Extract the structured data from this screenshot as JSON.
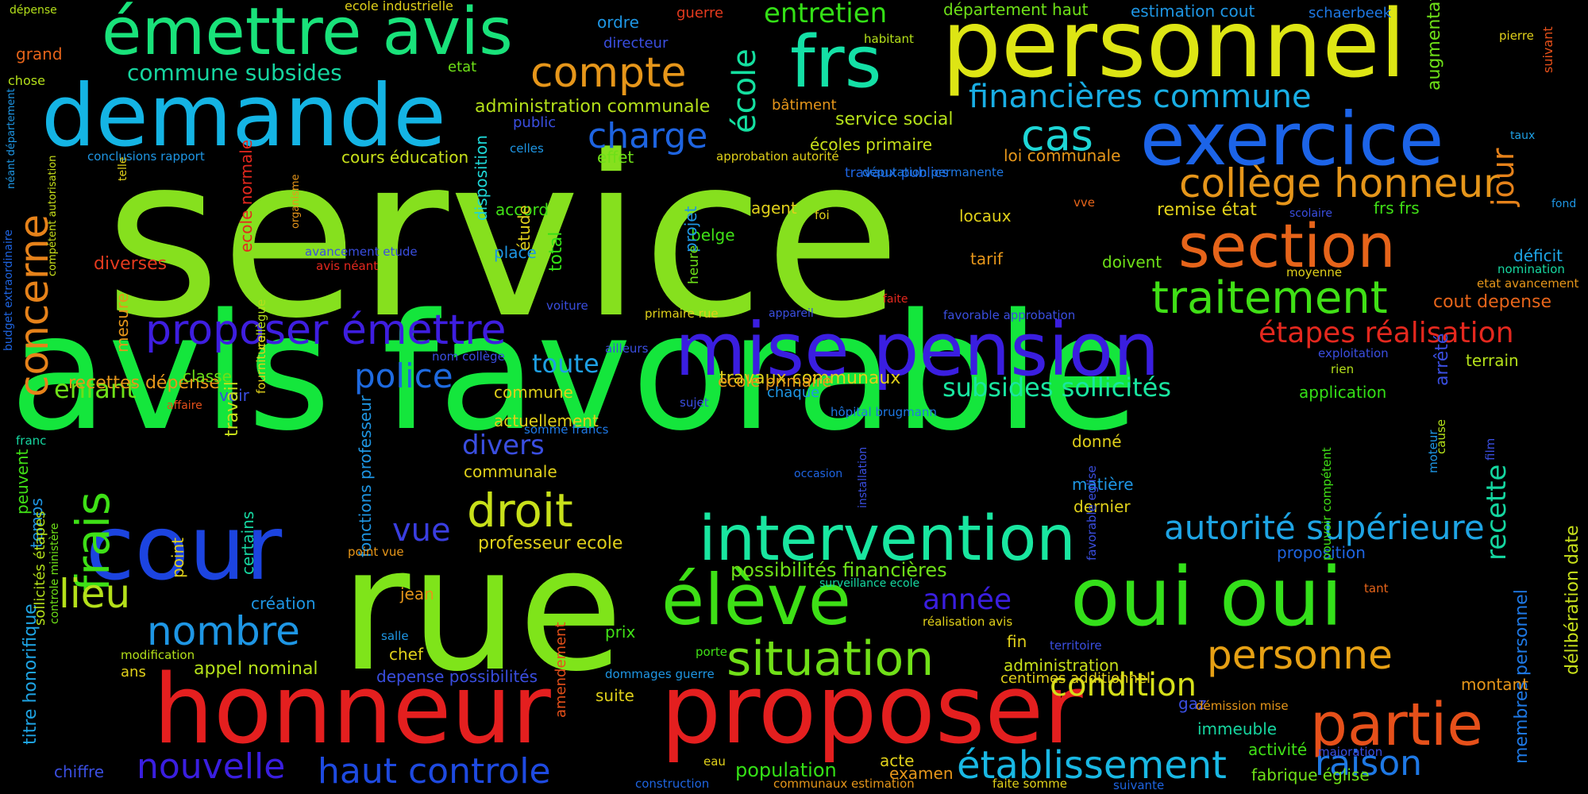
{
  "words": [
    {
      "text": "service",
      "color": "#86e01e"
    },
    {
      "text": "avis favorable",
      "color": "#14e63c"
    },
    {
      "text": "rue",
      "color": "#7fe41a"
    },
    {
      "text": "personnel",
      "color": "#dde514"
    },
    {
      "text": "honneur",
      "color": "#e41f1f"
    },
    {
      "text": "proposer",
      "color": "#e41f1f"
    },
    {
      "text": "demande",
      "color": "#14b4e4"
    },
    {
      "text": "émettre avis",
      "color": "#19e27a"
    },
    {
      "text": "mise pension",
      "color": "#3a1ee0"
    },
    {
      "text": "oui oui",
      "color": "#34e01a"
    },
    {
      "text": "exercice",
      "color": "#1c64e8"
    },
    {
      "text": "cour",
      "color": "#1c44e0"
    },
    {
      "text": "frs",
      "color": "#14e0a6"
    },
    {
      "text": "intervention",
      "color": "#19e6a0"
    },
    {
      "text": "élève",
      "color": "#3ee016"
    },
    {
      "text": "section",
      "color": "#e6641a"
    },
    {
      "text": "partie",
      "color": "#e6501a"
    },
    {
      "text": "collège honneur",
      "color": "#e6961a"
    },
    {
      "text": "traitement",
      "color": "#40e016"
    },
    {
      "text": "proposer émettre",
      "color": "#3e1ee0"
    },
    {
      "text": "situation",
      "color": "#70e018"
    },
    {
      "text": "droit",
      "color": "#c8e01a"
    },
    {
      "text": "cas",
      "color": "#1ed6d6"
    },
    {
      "text": "compte",
      "color": "#e6961a"
    },
    {
      "text": "personne",
      "color": "#e6a014"
    },
    {
      "text": "établissement",
      "color": "#19b8e4"
    },
    {
      "text": "autorité supérieure",
      "color": "#1ea4e4"
    },
    {
      "text": "financières commune",
      "color": "#19aee4"
    },
    {
      "text": "frais",
      "color": "#3ee016"
    },
    {
      "text": "nombre",
      "color": "#1e96e4"
    },
    {
      "text": "lieu",
      "color": "#b4e01a"
    },
    {
      "text": "concerne",
      "color": "#e6821a"
    },
    {
      "text": "école",
      "color": "#14e0a0"
    },
    {
      "text": "charge",
      "color": "#1e64e0"
    },
    {
      "text": "raison",
      "color": "#1e78e4"
    },
    {
      "text": "nouvelle",
      "color": "#3a1ee0"
    },
    {
      "text": "haut controle",
      "color": "#1e4ae0"
    },
    {
      "text": "condition",
      "color": "#d6e01a"
    },
    {
      "text": "police",
      "color": "#1e6ae0"
    },
    {
      "text": "étapes réalisation",
      "color": "#e4281e"
    },
    {
      "text": "jour",
      "color": "#e6821a"
    },
    {
      "text": "recette",
      "color": "#14d6a0"
    },
    {
      "text": "entretien",
      "color": "#34e016"
    },
    {
      "text": "divers",
      "color": "#3a4ee0"
    },
    {
      "text": "vue",
      "color": "#3a3ee0"
    },
    {
      "text": "année",
      "color": "#3a1ee0"
    },
    {
      "text": "subsides sollicités",
      "color": "#19e6a0"
    },
    {
      "text": "commune subsides",
      "color": "#16d6a0"
    },
    {
      "text": "toute",
      "color": "#1ea0e4"
    },
    {
      "text": "enfant",
      "color": "#6ee018"
    },
    {
      "text": "possibilités financières",
      "color": "#6ee018"
    },
    {
      "text": "appel nominal",
      "color": "#b4e01a"
    },
    {
      "text": "professeur ecole",
      "color": "#e0d01a"
    },
    {
      "text": "remise état",
      "color": "#e0d01a"
    },
    {
      "text": "cout depense",
      "color": "#e6641a"
    },
    {
      "text": "population",
      "color": "#34e016"
    },
    {
      "text": "administration communale",
      "color": "#b4e01a"
    },
    {
      "text": "travaux communaux",
      "color": "#e0d01a"
    },
    {
      "text": "recettes dépense",
      "color": "#e6961a"
    },
    {
      "text": "diverses",
      "color": "#e43a1e"
    },
    {
      "text": "service social",
      "color": "#b4e01a"
    },
    {
      "text": "cours éducation",
      "color": "#c8e01a"
    },
    {
      "text": "écoles primaire",
      "color": "#c8e01a"
    },
    {
      "text": "loi communale",
      "color": "#e6961a"
    },
    {
      "text": "augmentation",
      "color": "#6ee018"
    },
    {
      "text": "fonctions professeur",
      "color": "#1e96e4"
    },
    {
      "text": "titre honorifique",
      "color": "#1ea4e4"
    },
    {
      "text": "membres personnel",
      "color": "#1e78e4"
    },
    {
      "text": "délibération date",
      "color": "#c8e01a"
    },
    {
      "text": "département haut",
      "color": "#6ee018"
    },
    {
      "text": "estimation cout",
      "color": "#1e96e4"
    },
    {
      "text": "schaerbeek",
      "color": "#1e78e4"
    },
    {
      "text": "ecole industrielle",
      "color": "#e0d01a"
    },
    {
      "text": "guerre",
      "color": "#e43a1e"
    },
    {
      "text": "dépense",
      "color": "#b4e01a"
    },
    {
      "text": "suivant",
      "color": "#e6501a"
    },
    {
      "text": "pierre",
      "color": "#e0d01a"
    },
    {
      "text": "grand",
      "color": "#e6641a"
    },
    {
      "text": "chose",
      "color": "#b4e01a"
    },
    {
      "text": "néant département",
      "color": "#1e96e4"
    },
    {
      "text": "budget extraordinaire",
      "color": "#1e64e0"
    },
    {
      "text": "compétent autorisation",
      "color": "#c8e01a"
    },
    {
      "text": "conclusions rapport",
      "color": "#1e96e4"
    },
    {
      "text": "telle",
      "color": "#e0d01a"
    },
    {
      "text": "ecole normale",
      "color": "#e4281e"
    },
    {
      "text": "avancement etude",
      "color": "#3a4ee0"
    },
    {
      "text": "avis néant",
      "color": "#e4281e"
    },
    {
      "text": "organisme",
      "color": "#e6961a"
    },
    {
      "text": "celles",
      "color": "#1e96e4"
    },
    {
      "text": "effet",
      "color": "#6ee018"
    },
    {
      "text": "approbation autorité",
      "color": "#e0d01a"
    },
    {
      "text": "ordre",
      "color": "#1e96e4"
    },
    {
      "text": "directeur",
      "color": "#3a4ee0"
    },
    {
      "text": "habitant",
      "color": "#b4e01a"
    },
    {
      "text": "etat",
      "color": "#6ee018"
    },
    {
      "text": "bâtiment",
      "color": "#e6961a"
    },
    {
      "text": "public",
      "color": "#3a4ee0"
    },
    {
      "text": "taux",
      "color": "#1ea0e4"
    },
    {
      "text": "fond",
      "color": "#1e96e4"
    },
    {
      "text": "scolaire",
      "color": "#3a4ee0"
    },
    {
      "text": "frs frs",
      "color": "#40e016"
    },
    {
      "text": "déficit",
      "color": "#1ea4e4"
    },
    {
      "text": "nomination",
      "color": "#16d6a0"
    },
    {
      "text": "etat avancement",
      "color": "#e6961a"
    },
    {
      "text": "moyenne",
      "color": "#e0d01a"
    },
    {
      "text": "locaux",
      "color": "#e0d01a"
    },
    {
      "text": "vve",
      "color": "#e6641a"
    },
    {
      "text": "agent",
      "color": "#e0d01a"
    },
    {
      "text": "foi",
      "color": "#e0d01a"
    },
    {
      "text": "accord",
      "color": "#40e016"
    },
    {
      "text": "disposition",
      "color": "#1ed6d6"
    },
    {
      "text": "belge",
      "color": "#40e016"
    },
    {
      "text": "étude",
      "color": "#e0d01a"
    },
    {
      "text": "projet",
      "color": "#1e96e4"
    },
    {
      "text": "total",
      "color": "#34e016"
    },
    {
      "text": "heure",
      "color": "#6ee018"
    },
    {
      "text": "tarif",
      "color": "#e6961a"
    },
    {
      "text": "doivent",
      "color": "#6ee018"
    },
    {
      "text": "travaux publics",
      "color": "#1e64e0"
    },
    {
      "text": "députation permanente",
      "color": "#1e78e4"
    },
    {
      "text": "faite",
      "color": "#e4281e"
    },
    {
      "text": "place",
      "color": "#1e96e4"
    },
    {
      "text": "voiture",
      "color": "#3a4ee0"
    },
    {
      "text": "primaire rue",
      "color": "#e0d01a"
    },
    {
      "text": "appareil",
      "color": "#3a4ee0"
    },
    {
      "text": "favorable approbation",
      "color": "#3a4ee0"
    },
    {
      "text": "exploitation",
      "color": "#3a4ee0"
    },
    {
      "text": "rien",
      "color": "#b4e01a"
    },
    {
      "text": "terrain",
      "color": "#b4e01a"
    },
    {
      "text": "mesure",
      "color": "#e6961a"
    },
    {
      "text": "collègue",
      "color": "#b4e01a"
    },
    {
      "text": "nom collège",
      "color": "#3a4ee0"
    },
    {
      "text": "ailleurs",
      "color": "#3a4ee0"
    },
    {
      "text": "classe",
      "color": "#6ee018"
    },
    {
      "text": "voir",
      "color": "#3a4ee0"
    },
    {
      "text": "fourniture",
      "color": "#e0d01a"
    },
    {
      "text": "commune",
      "color": "#e0d01a"
    },
    {
      "text": "ecole primaire",
      "color": "#e6961a"
    },
    {
      "text": "chaque",
      "color": "#1e96e4"
    },
    {
      "text": "application",
      "color": "#34e016"
    },
    {
      "text": "arrêté",
      "color": "#3a4ee0"
    },
    {
      "text": "hôpital brugmann",
      "color": "#1e78e4"
    },
    {
      "text": "sujet",
      "color": "#3a4ee0"
    },
    {
      "text": "affaire",
      "color": "#e6501a"
    },
    {
      "text": "franc",
      "color": "#16d6a0"
    },
    {
      "text": "travail",
      "color": "#c8e01a"
    },
    {
      "text": "actuellement",
      "color": "#e0d01a"
    },
    {
      "text": "somme francs",
      "color": "#1e78e4"
    },
    {
      "text": "communale",
      "color": "#e0d01a"
    },
    {
      "text": "donné",
      "color": "#e0d01a"
    },
    {
      "text": "cause",
      "color": "#b4e01a"
    },
    {
      "text": "film",
      "color": "#3a4ee0"
    },
    {
      "text": "occasion",
      "color": "#1e64e0"
    },
    {
      "text": "matière",
      "color": "#1e96e4"
    },
    {
      "text": "moteur",
      "color": "#1e96e4"
    },
    {
      "text": "dernier",
      "color": "#e0d01a"
    },
    {
      "text": "installation",
      "color": "#3a4ee0"
    },
    {
      "text": "peuvent",
      "color": "#40e016"
    },
    {
      "text": "temps",
      "color": "#1e96e4"
    },
    {
      "text": "point vue",
      "color": "#e6961a"
    },
    {
      "text": "proposition",
      "color": "#1e64e0"
    },
    {
      "text": "favorable eglise",
      "color": "#3a4ee0"
    },
    {
      "text": "pouvoir compétent",
      "color": "#40e016"
    },
    {
      "text": "point",
      "color": "#e0d01a"
    },
    {
      "text": "certains",
      "color": "#16d6a0"
    },
    {
      "text": "création",
      "color": "#1e96e4"
    },
    {
      "text": "surveillance ecole",
      "color": "#16d6a0"
    },
    {
      "text": "tant",
      "color": "#e6641a"
    },
    {
      "text": "jean",
      "color": "#e6961a"
    },
    {
      "text": "réalisation avis",
      "color": "#e0d01a"
    },
    {
      "text": "territoire",
      "color": "#3a4ee0"
    },
    {
      "text": "fin",
      "color": "#e0d01a"
    },
    {
      "text": "salle",
      "color": "#1e96e4"
    },
    {
      "text": "prix",
      "color": "#40e016"
    },
    {
      "text": "porte",
      "color": "#40e016"
    },
    {
      "text": "modification",
      "color": "#b4e01a"
    },
    {
      "text": "chef",
      "color": "#e0d01a"
    },
    {
      "text": "sollicités étapes",
      "color": "#b4e01a"
    },
    {
      "text": "controle ministère",
      "color": "#6ee018"
    },
    {
      "text": "ans",
      "color": "#e0d01a"
    },
    {
      "text": "depense possibilités",
      "color": "#3a4ee0"
    },
    {
      "text": "dommages guerre",
      "color": "#1e96e4"
    },
    {
      "text": "administration",
      "color": "#c8e01a"
    },
    {
      "text": "centimes additionnel",
      "color": "#e0d01a"
    },
    {
      "text": "montant",
      "color": "#e6961a"
    },
    {
      "text": "suite",
      "color": "#e0d01a"
    },
    {
      "text": "amendement",
      "color": "#e6501a"
    },
    {
      "text": "gaz",
      "color": "#3a4ee0"
    },
    {
      "text": "démission mise",
      "color": "#e6961a"
    },
    {
      "text": "immeuble",
      "color": "#16d6a0"
    },
    {
      "text": "activité",
      "color": "#40e016"
    },
    {
      "text": "majoration",
      "color": "#3a4ee0"
    },
    {
      "text": "chiffre",
      "color": "#3a4ee0"
    },
    {
      "text": "eau",
      "color": "#e0d01a"
    },
    {
      "text": "acte",
      "color": "#e0d01a"
    },
    {
      "text": "examen",
      "color": "#e6961a"
    },
    {
      "text": "construction",
      "color": "#1e64e0"
    },
    {
      "text": "communaux estimation",
      "color": "#e6961a"
    },
    {
      "text": "faite somme",
      "color": "#e0d01a"
    },
    {
      "text": "suivante",
      "color": "#1e64e0"
    },
    {
      "text": "fabrique église",
      "color": "#6ee018"
    }
  ]
}
